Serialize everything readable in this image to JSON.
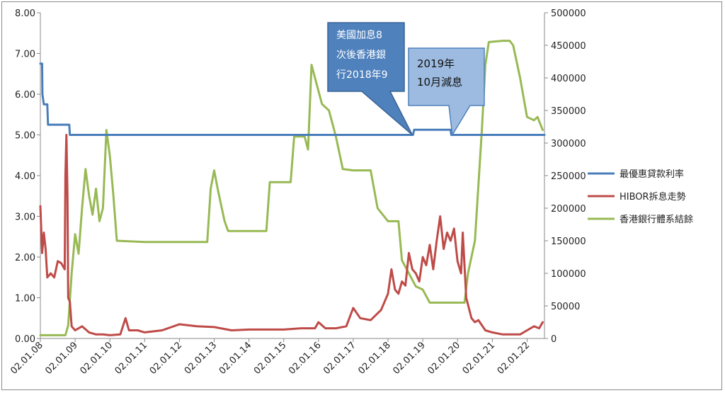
{
  "chart_data": {
    "type": "line",
    "x_tick_labels": [
      "02.01.08",
      "02.01.09",
      "02.01.10",
      "02.01.11",
      "02.01.12",
      "02.01.13",
      "02.01.14",
      "02.01.15",
      "02.01.16",
      "02.01.17",
      "02.01.18",
      "02.01.19",
      "02.01.20",
      "02.01.21",
      "02.01.22"
    ],
    "x_range": [
      2008.0,
      2022.5
    ],
    "y_left": {
      "range": [
        0,
        8
      ],
      "ticks": [
        "0.00",
        "1.00",
        "2.00",
        "3.00",
        "4.00",
        "5.00",
        "6.00",
        "7.00",
        "8.00"
      ]
    },
    "y_right": {
      "range": [
        0,
        500000
      ],
      "ticks": [
        "0",
        "50000",
        "100000",
        "150000",
        "200000",
        "250000",
        "300000",
        "350000",
        "400000",
        "450000",
        "500000"
      ]
    },
    "legend_position": "right",
    "grid": false,
    "series": [
      {
        "name": "最優惠貸款利率",
        "axis": "left",
        "color": "#4a7ebb",
        "points": [
          [
            2008.0,
            6.75
          ],
          [
            2008.05,
            6.75
          ],
          [
            2008.06,
            6.0
          ],
          [
            2008.1,
            5.75
          ],
          [
            2008.2,
            5.75
          ],
          [
            2008.22,
            5.25
          ],
          [
            2008.83,
            5.25
          ],
          [
            2008.85,
            5.0
          ],
          [
            2018.72,
            5.0
          ],
          [
            2018.75,
            5.125
          ],
          [
            2019.8,
            5.125
          ],
          [
            2019.82,
            5.0
          ],
          [
            2022.5,
            5.0
          ]
        ]
      },
      {
        "name": "HIBOR拆息走勢",
        "axis": "left",
        "color": "#be4b48",
        "points": [
          [
            2008.0,
            3.25
          ],
          [
            2008.05,
            2.1
          ],
          [
            2008.1,
            2.6
          ],
          [
            2008.15,
            2.2
          ],
          [
            2008.2,
            1.5
          ],
          [
            2008.3,
            1.6
          ],
          [
            2008.4,
            1.5
          ],
          [
            2008.5,
            1.9
          ],
          [
            2008.6,
            1.85
          ],
          [
            2008.7,
            1.7
          ],
          [
            2008.72,
            4.0
          ],
          [
            2008.75,
            5.0
          ],
          [
            2008.78,
            3.5
          ],
          [
            2008.8,
            1.0
          ],
          [
            2008.85,
            0.9
          ],
          [
            2008.9,
            0.3
          ],
          [
            2009.0,
            0.2
          ],
          [
            2009.2,
            0.3
          ],
          [
            2009.4,
            0.15
          ],
          [
            2009.6,
            0.1
          ],
          [
            2009.8,
            0.1
          ],
          [
            2010.0,
            0.08
          ],
          [
            2010.3,
            0.1
          ],
          [
            2010.45,
            0.5
          ],
          [
            2010.55,
            0.2
          ],
          [
            2010.8,
            0.2
          ],
          [
            2011.0,
            0.15
          ],
          [
            2011.5,
            0.2
          ],
          [
            2012.0,
            0.35
          ],
          [
            2012.5,
            0.3
          ],
          [
            2013.0,
            0.28
          ],
          [
            2013.5,
            0.2
          ],
          [
            2014.0,
            0.22
          ],
          [
            2014.5,
            0.22
          ],
          [
            2015.0,
            0.22
          ],
          [
            2015.5,
            0.25
          ],
          [
            2015.9,
            0.25
          ],
          [
            2016.0,
            0.4
          ],
          [
            2016.2,
            0.25
          ],
          [
            2016.5,
            0.25
          ],
          [
            2016.8,
            0.3
          ],
          [
            2017.0,
            0.75
          ],
          [
            2017.2,
            0.5
          ],
          [
            2017.5,
            0.45
          ],
          [
            2017.8,
            0.7
          ],
          [
            2018.0,
            1.1
          ],
          [
            2018.1,
            1.7
          ],
          [
            2018.2,
            1.2
          ],
          [
            2018.3,
            1.1
          ],
          [
            2018.4,
            1.4
          ],
          [
            2018.5,
            1.3
          ],
          [
            2018.6,
            2.1
          ],
          [
            2018.7,
            1.7
          ],
          [
            2018.8,
            1.6
          ],
          [
            2018.9,
            1.4
          ],
          [
            2019.0,
            2.0
          ],
          [
            2019.1,
            1.8
          ],
          [
            2019.2,
            2.3
          ],
          [
            2019.3,
            1.7
          ],
          [
            2019.4,
            2.4
          ],
          [
            2019.5,
            3.0
          ],
          [
            2019.6,
            2.2
          ],
          [
            2019.7,
            2.6
          ],
          [
            2019.8,
            2.4
          ],
          [
            2019.9,
            2.7
          ],
          [
            2020.0,
            1.9
          ],
          [
            2020.1,
            1.6
          ],
          [
            2020.15,
            2.6
          ],
          [
            2020.25,
            1.0
          ],
          [
            2020.4,
            0.5
          ],
          [
            2020.5,
            0.4
          ],
          [
            2020.6,
            0.45
          ],
          [
            2020.8,
            0.2
          ],
          [
            2021.0,
            0.15
          ],
          [
            2021.3,
            0.1
          ],
          [
            2021.6,
            0.1
          ],
          [
            2021.8,
            0.1
          ],
          [
            2022.0,
            0.2
          ],
          [
            2022.2,
            0.3
          ],
          [
            2022.35,
            0.25
          ],
          [
            2022.45,
            0.4
          ]
        ]
      },
      {
        "name": "香港銀行體系結餘",
        "axis": "right",
        "color": "#98b954",
        "points": [
          [
            2008.0,
            5000
          ],
          [
            2008.4,
            5000
          ],
          [
            2008.72,
            5000
          ],
          [
            2008.8,
            20000
          ],
          [
            2008.9,
            100000
          ],
          [
            2009.0,
            160000
          ],
          [
            2009.1,
            130000
          ],
          [
            2009.2,
            200000
          ],
          [
            2009.3,
            260000
          ],
          [
            2009.4,
            220000
          ],
          [
            2009.5,
            190000
          ],
          [
            2009.6,
            230000
          ],
          [
            2009.7,
            180000
          ],
          [
            2009.8,
            200000
          ],
          [
            2009.9,
            320000
          ],
          [
            2010.0,
            280000
          ],
          [
            2010.1,
            220000
          ],
          [
            2010.2,
            150000
          ],
          [
            2011.0,
            148000
          ],
          [
            2012.0,
            148000
          ],
          [
            2012.8,
            148000
          ],
          [
            2012.9,
            230000
          ],
          [
            2013.0,
            258000
          ],
          [
            2013.1,
            230000
          ],
          [
            2013.3,
            180000
          ],
          [
            2013.4,
            165000
          ],
          [
            2014.0,
            165000
          ],
          [
            2014.5,
            165000
          ],
          [
            2014.6,
            240000
          ],
          [
            2015.0,
            240000
          ],
          [
            2015.2,
            240000
          ],
          [
            2015.3,
            310000
          ],
          [
            2015.6,
            310000
          ],
          [
            2015.7,
            290000
          ],
          [
            2015.8,
            420000
          ],
          [
            2015.9,
            400000
          ],
          [
            2016.1,
            360000
          ],
          [
            2016.3,
            350000
          ],
          [
            2016.5,
            310000
          ],
          [
            2016.7,
            260000
          ],
          [
            2017.0,
            258000
          ],
          [
            2017.5,
            258000
          ],
          [
            2017.7,
            200000
          ],
          [
            2018.0,
            180000
          ],
          [
            2018.3,
            180000
          ],
          [
            2018.4,
            120000
          ],
          [
            2018.6,
            100000
          ],
          [
            2018.8,
            80000
          ],
          [
            2019.0,
            75000
          ],
          [
            2019.2,
            55000
          ],
          [
            2019.5,
            55000
          ],
          [
            2019.8,
            55000
          ],
          [
            2020.0,
            55000
          ],
          [
            2020.2,
            55000
          ],
          [
            2020.3,
            100000
          ],
          [
            2020.5,
            150000
          ],
          [
            2020.7,
            320000
          ],
          [
            2020.8,
            420000
          ],
          [
            2020.9,
            455000
          ],
          [
            2021.3,
            457000
          ],
          [
            2021.5,
            457000
          ],
          [
            2021.6,
            450000
          ],
          [
            2021.8,
            400000
          ],
          [
            2022.0,
            340000
          ],
          [
            2022.2,
            335000
          ],
          [
            2022.3,
            340000
          ],
          [
            2022.45,
            320000
          ]
        ]
      }
    ],
    "annotations": [
      {
        "lines": [
          "美國加息8",
          "次後香港銀",
          "行2018年9"
        ],
        "style": "dark",
        "pointer": [
          2018.7,
          5.0
        ]
      },
      {
        "lines": [
          "2019年",
          "10月減息"
        ],
        "style": "light",
        "pointer": [
          2019.85,
          5.0
        ]
      }
    ]
  }
}
